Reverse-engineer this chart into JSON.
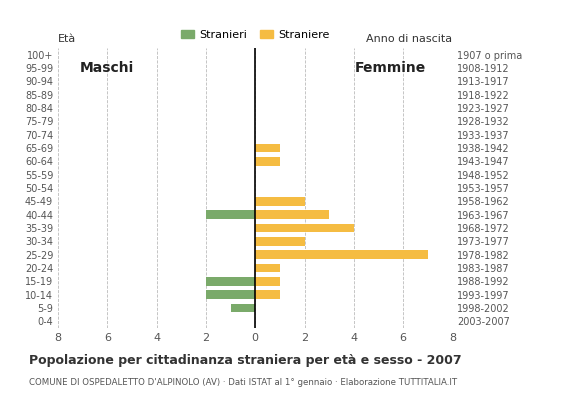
{
  "age_groups": [
    "100+",
    "95-99",
    "90-94",
    "85-89",
    "80-84",
    "75-79",
    "70-74",
    "65-69",
    "60-64",
    "55-59",
    "50-54",
    "45-49",
    "40-44",
    "35-39",
    "30-34",
    "25-29",
    "20-24",
    "15-19",
    "10-14",
    "5-9",
    "0-4"
  ],
  "birth_years": [
    "1907 o prima",
    "1908-1912",
    "1913-1917",
    "1918-1922",
    "1923-1927",
    "1928-1932",
    "1933-1937",
    "1938-1942",
    "1943-1947",
    "1948-1952",
    "1953-1957",
    "1958-1962",
    "1963-1967",
    "1968-1972",
    "1973-1977",
    "1978-1982",
    "1983-1987",
    "1988-1992",
    "1993-1997",
    "1998-2002",
    "2003-2007"
  ],
  "males": [
    0,
    0,
    0,
    0,
    0,
    0,
    0,
    0,
    0,
    0,
    0,
    0,
    2,
    0,
    0,
    0,
    0,
    2,
    2,
    1,
    0
  ],
  "females": [
    0,
    0,
    0,
    0,
    0,
    0,
    0,
    1,
    1,
    0,
    0,
    2,
    3,
    4,
    2,
    7,
    1,
    1,
    1,
    0,
    0
  ],
  "male_color": "#7aaa6a",
  "female_color": "#f5bc42",
  "title": "Popolazione per cittadinanza straniera per età e sesso - 2007",
  "subtitle": "COMUNE DI OSPEDALETTO D'ALPINOLO (AV) · Dati ISTAT al 1° gennaio · Elaborazione TUTTITALIA.IT",
  "xlabel_left": "Maschi",
  "xlabel_right": "Femmine",
  "legend_male": "Stranieri",
  "legend_female": "Straniere",
  "ylabel_left": "À",
  "ylabel_right": "Anno di nascita",
  "xlim": 8,
  "background_color": "#ffffff",
  "grid_color": "#bbbbbb"
}
